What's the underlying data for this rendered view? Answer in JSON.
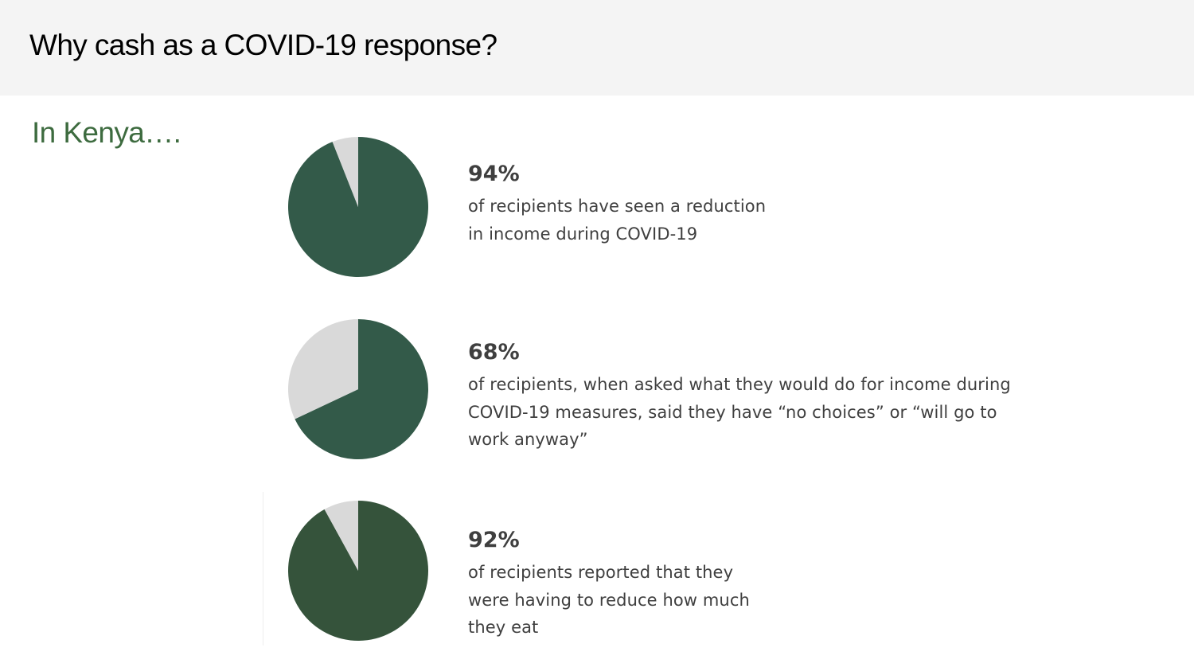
{
  "header": {
    "title": "Why cash as a COVID-19 response?"
  },
  "section": {
    "subtitle": "In Kenya….",
    "subtitle_color": "#3d6b3f"
  },
  "colors": {
    "remainder": "#d9d9d9"
  },
  "chart_data": [
    {
      "type": "pie",
      "slices": [
        {
          "label": "",
          "value": 94,
          "color": "#335a49"
        },
        {
          "label": "",
          "value": 6,
          "color": "#d9d9d9"
        }
      ],
      "stat": "94%",
      "caption": "of recipients have seen a reduction\nin income during COVID-19"
    },
    {
      "type": "pie",
      "slices": [
        {
          "label": "",
          "value": 68,
          "color": "#335a49"
        },
        {
          "label": "",
          "value": 32,
          "color": "#d9d9d9"
        }
      ],
      "stat": "68%",
      "caption": "of recipients, when asked what they would do for income during\nCOVID-19 measures, said they have “no choices” or “will go to\nwork anyway”"
    },
    {
      "type": "pie",
      "slices": [
        {
          "label": "",
          "value": 92,
          "color": "#35533b"
        },
        {
          "label": "",
          "value": 8,
          "color": "#d9d9d9"
        }
      ],
      "stat": "92%",
      "caption": "of recipients reported that they\nwere having to reduce how much\nthey eat"
    }
  ]
}
